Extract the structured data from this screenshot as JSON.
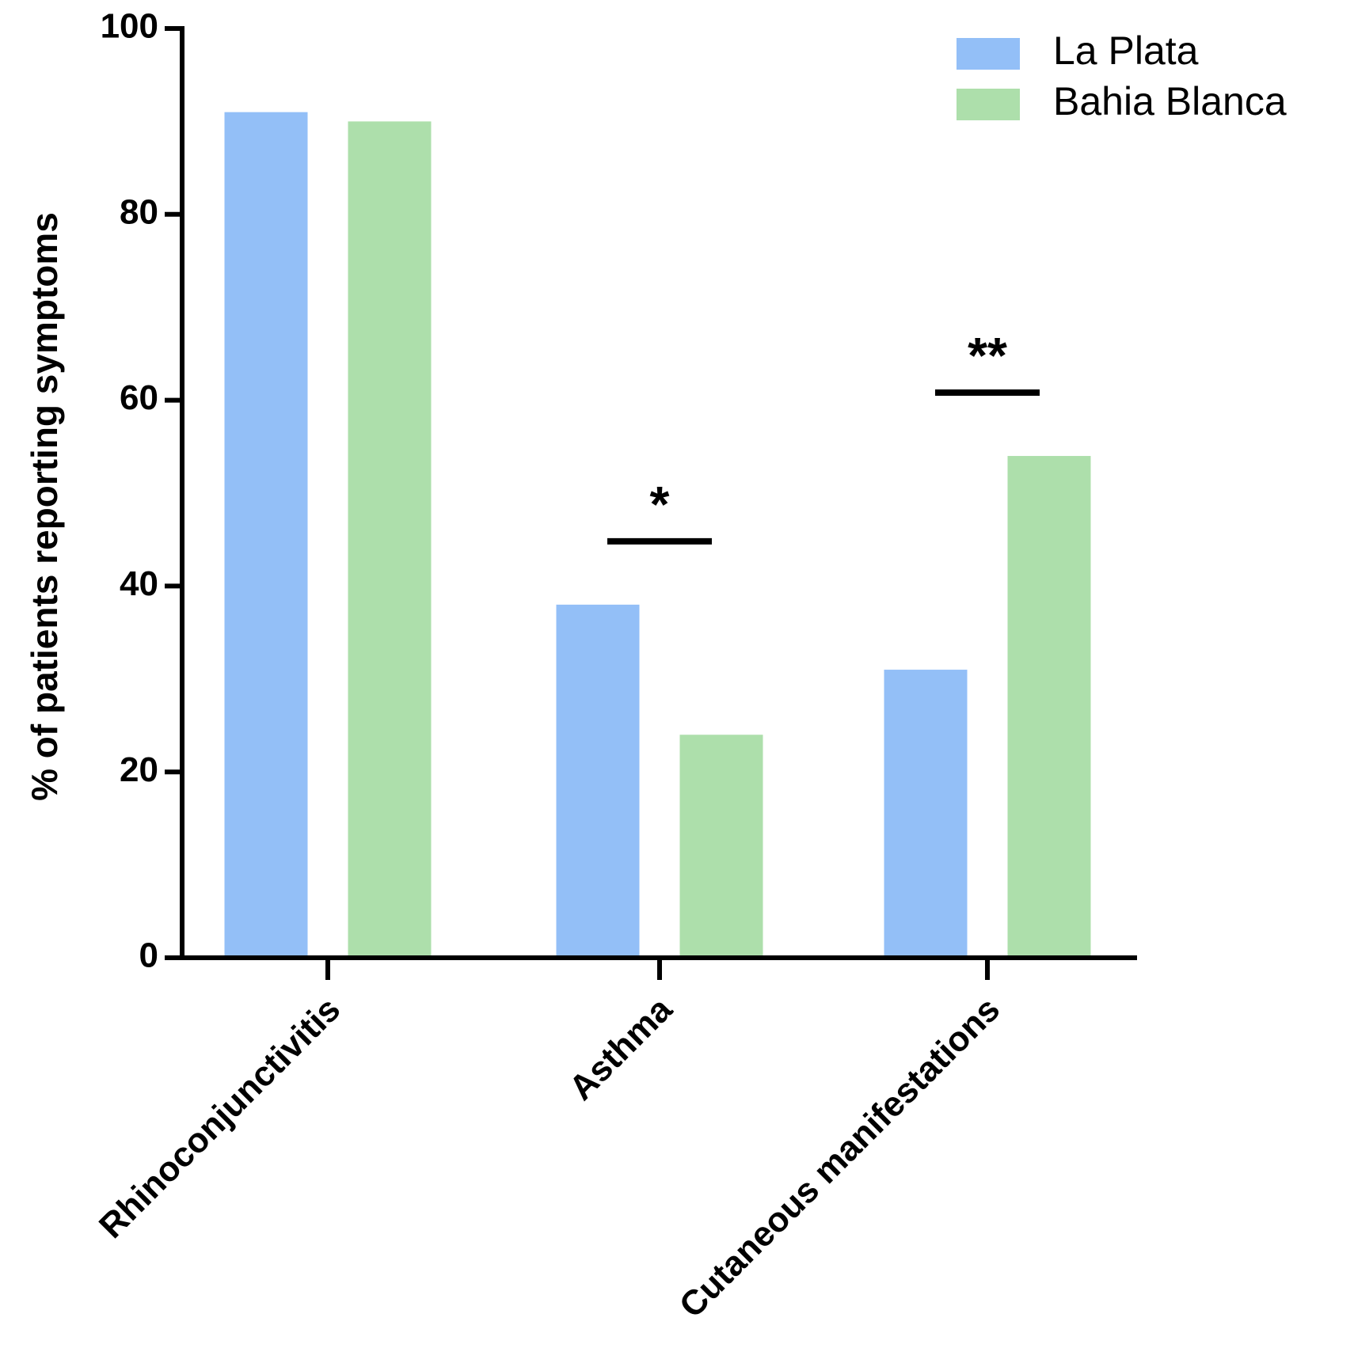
{
  "chart_data": {
    "type": "bar",
    "y_label": "% of patients reporting symptoms",
    "categories": [
      "Rhinoconjunctivitis",
      "Asthma",
      "Cutaneous manifestations"
    ],
    "series": [
      {
        "name": "La Plata",
        "color": "#93bff7",
        "values": [
          91,
          38,
          31
        ]
      },
      {
        "name": "Bahia Blanca",
        "color": "#addfab",
        "values": [
          90,
          24,
          54
        ]
      }
    ],
    "significance": [
      null,
      "*",
      "**"
    ],
    "ylim": [
      0,
      100
    ],
    "yticks": [
      0,
      20,
      40,
      60,
      80,
      100
    ],
    "legend": "top-right"
  }
}
